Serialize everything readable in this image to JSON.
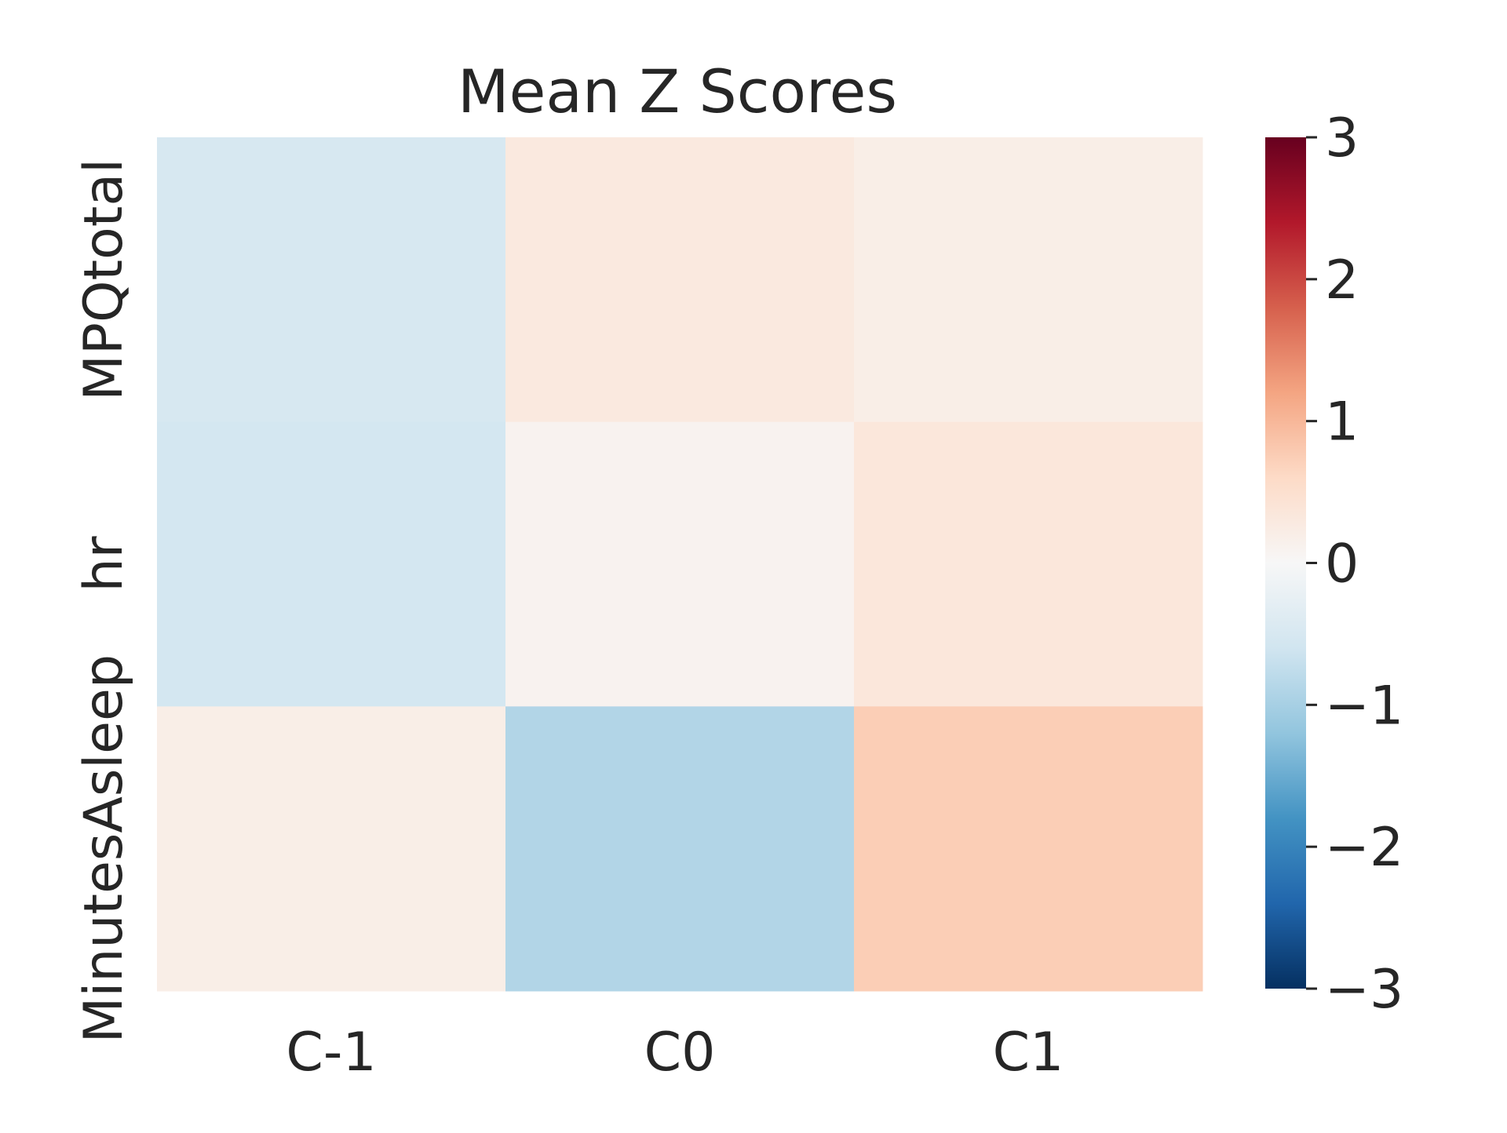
{
  "chart_data": {
    "type": "heatmap",
    "title": "Mean Z Scores",
    "x_categories": [
      "C-1",
      "C0",
      "C1"
    ],
    "y_categories": [
      "MPQtotal",
      "hr",
      "MinutesAsleep"
    ],
    "values": [
      [
        -0.5,
        0.3,
        0.2
      ],
      [
        -0.55,
        0.1,
        0.35
      ],
      [
        0.2,
        -0.9,
        0.75
      ]
    ],
    "colorbar": {
      "colormap": "RdBu_r",
      "vmin": -3,
      "vmax": 3,
      "ticks": [
        3,
        2,
        1,
        0,
        -1,
        -2,
        -3
      ],
      "tick_labels": [
        "3",
        "2",
        "1",
        "0",
        "−1",
        "−2",
        "−3"
      ]
    },
    "grid": false,
    "legend": "colorbar-right"
  }
}
